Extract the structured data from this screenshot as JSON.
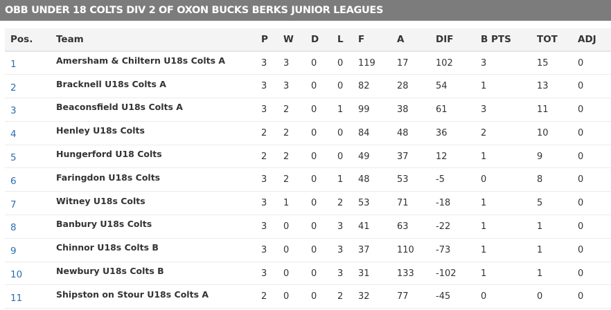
{
  "title": "OBB UNDER 18 COLTS DIV 2 OF OXON BUCKS BERKS JUNIOR LEAGUES",
  "columns": [
    "Pos.",
    "Team",
    "P",
    "W",
    "D",
    "L",
    "F",
    "A",
    "DIF",
    "B PTS",
    "TOT",
    "ADJ"
  ],
  "rows": [
    {
      "pos": "1",
      "team": "Amersham & Chiltern U18s Colts A",
      "p": "3",
      "w": "3",
      "d": "0",
      "l": "0",
      "f": "119",
      "a": "17",
      "dif": "102",
      "bpts": "3",
      "tot": "15",
      "adj": "0"
    },
    {
      "pos": "2",
      "team": "Bracknell U18s Colts A",
      "p": "3",
      "w": "3",
      "d": "0",
      "l": "0",
      "f": "82",
      "a": "28",
      "dif": "54",
      "bpts": "1",
      "tot": "13",
      "adj": "0"
    },
    {
      "pos": "3",
      "team": "Beaconsfield U18s Colts A",
      "p": "3",
      "w": "2",
      "d": "0",
      "l": "1",
      "f": "99",
      "a": "38",
      "dif": "61",
      "bpts": "3",
      "tot": "11",
      "adj": "0"
    },
    {
      "pos": "4",
      "team": "Henley U18s Colts",
      "p": "2",
      "w": "2",
      "d": "0",
      "l": "0",
      "f": "84",
      "a": "48",
      "dif": "36",
      "bpts": "2",
      "tot": "10",
      "adj": "0"
    },
    {
      "pos": "5",
      "team": "Hungerford U18 Colts",
      "p": "2",
      "w": "2",
      "d": "0",
      "l": "0",
      "f": "49",
      "a": "37",
      "dif": "12",
      "bpts": "1",
      "tot": "9",
      "adj": "0"
    },
    {
      "pos": "6",
      "team": "Faringdon U18s Colts",
      "p": "3",
      "w": "2",
      "d": "0",
      "l": "1",
      "f": "48",
      "a": "53",
      "dif": "-5",
      "bpts": "0",
      "tot": "8",
      "adj": "0"
    },
    {
      "pos": "7",
      "team": "Witney U18s Colts",
      "p": "3",
      "w": "1",
      "d": "0",
      "l": "2",
      "f": "53",
      "a": "71",
      "dif": "-18",
      "bpts": "1",
      "tot": "5",
      "adj": "0"
    },
    {
      "pos": "8",
      "team": "Banbury U18s Colts",
      "p": "3",
      "w": "0",
      "d": "0",
      "l": "3",
      "f": "41",
      "a": "63",
      "dif": "-22",
      "bpts": "1",
      "tot": "1",
      "adj": "0"
    },
    {
      "pos": "9",
      "team": "Chinnor U18s Colts B",
      "p": "3",
      "w": "0",
      "d": "0",
      "l": "3",
      "f": "37",
      "a": "110",
      "dif": "-73",
      "bpts": "1",
      "tot": "1",
      "adj": "0"
    },
    {
      "pos": "10",
      "team": "Newbury U18s Colts B",
      "p": "3",
      "w": "0",
      "d": "0",
      "l": "3",
      "f": "31",
      "a": "133",
      "dif": "-102",
      "bpts": "1",
      "tot": "1",
      "adj": "0"
    },
    {
      "pos": "11",
      "team": "Shipston on Stour U18s Colts A",
      "p": "2",
      "w": "0",
      "d": "0",
      "l": "2",
      "f": "32",
      "a": "77",
      "dif": "-45",
      "bpts": "0",
      "tot": "0",
      "adj": "0"
    }
  ],
  "colors": {
    "title_bar": "#7c7c7c",
    "header_bg": "#f4f4f4",
    "link": "#2a6db0",
    "text": "#333333"
  }
}
